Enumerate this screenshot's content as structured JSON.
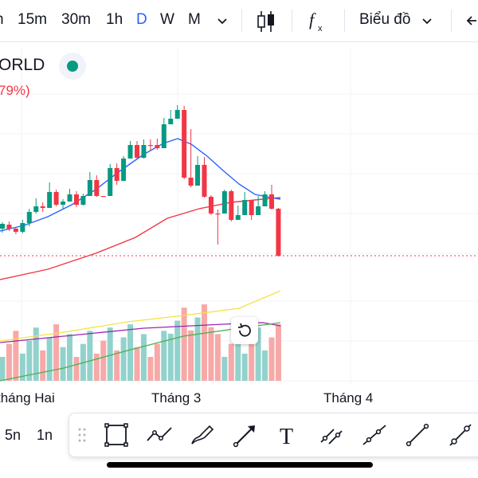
{
  "toolbar": {
    "intervals": [
      "h",
      "15m",
      "30m",
      "1h",
      "D",
      "W",
      "M"
    ],
    "active_interval": "D",
    "chart_type_label": "Biểu đồ"
  },
  "legend": {
    "symbol": "ORLD",
    "change": "79%)"
  },
  "chart_data": {
    "type": "candlestick",
    "x_labels": [
      "tháng Hai",
      "Tháng 3",
      "Tháng 4"
    ],
    "price_line_color": "#f23645",
    "up_color": "#089981",
    "down_color": "#f23645",
    "volume_up_color": "#92d2cc",
    "volume_down_color": "#f7a9a7",
    "indicators": [
      {
        "name": "",
        "color": "#2962ff"
      },
      {
        "name": "",
        "color": "#f23645"
      },
      {
        "name": "",
        "color": "#f5e342"
      },
      {
        "name": "",
        "color": "#9c27b0"
      },
      {
        "name": "",
        "color": "#4caf50"
      }
    ],
    "candles": [
      [
        287,
        281,
        292,
        279
      ],
      [
        282,
        287,
        290,
        278
      ],
      [
        287,
        291,
        294,
        285
      ],
      [
        291,
        280,
        293,
        276
      ],
      [
        280,
        266,
        284,
        262
      ],
      [
        266,
        259,
        268,
        249
      ],
      [
        259,
        261,
        266,
        254
      ],
      [
        261,
        241,
        243,
        229
      ],
      [
        241,
        257,
        259,
        238
      ],
      [
        257,
        253,
        262,
        250
      ],
      [
        253,
        244,
        245,
        237
      ],
      [
        244,
        257,
        260,
        240
      ],
      [
        257,
        246,
        258,
        243
      ],
      [
        246,
        226,
        230,
        216
      ],
      [
        226,
        246,
        247,
        220
      ],
      [
        246,
        246,
        246,
        246
      ],
      [
        246,
        211,
        212,
        206
      ],
      [
        211,
        227,
        232,
        205
      ],
      [
        227,
        199,
        201,
        196
      ],
      [
        199,
        182,
        185,
        177
      ],
      [
        182,
        198,
        199,
        177
      ],
      [
        198,
        182,
        199,
        175
      ],
      [
        182,
        182,
        189,
        175
      ],
      [
        182,
        186,
        188,
        174
      ],
      [
        186,
        156,
        161,
        148
      ],
      [
        156,
        149,
        150,
        138
      ],
      [
        149,
        138,
        140,
        132
      ],
      [
        138,
        223,
        225,
        133
      ],
      [
        223,
        233,
        235,
        162
      ],
      [
        233,
        207,
        208,
        196
      ],
      [
        207,
        247,
        248,
        197
      ],
      [
        247,
        268,
        270,
        245
      ],
      [
        268,
        268,
        307,
        263
      ],
      [
        268,
        240,
        267,
        238
      ],
      [
        240,
        276,
        278,
        238
      ],
      [
        276,
        270,
        272,
        258
      ],
      [
        270,
        251,
        253,
        241
      ],
      [
        251,
        270,
        276,
        260
      ],
      [
        270,
        259,
        261,
        246
      ],
      [
        259,
        244,
        250,
        240
      ],
      [
        244,
        262,
        263,
        232
      ],
      [
        262,
        321,
        322,
        261
      ]
    ],
    "volumes": [
      [
        0,
        1
      ],
      [
        0,
        0
      ],
      [
        1,
        0
      ],
      [
        0,
        1
      ],
      [
        0,
        0
      ],
      [
        1,
        1
      ],
      [
        1,
        0
      ],
      [
        0,
        1
      ],
      [
        1,
        0
      ],
      [
        0,
        1
      ],
      [
        0,
        0
      ],
      [
        1,
        0
      ],
      [
        0,
        1
      ],
      [
        0,
        1
      ],
      [
        1,
        0
      ],
      [
        0,
        0
      ],
      [
        1,
        0
      ],
      [
        1,
        1
      ],
      [
        0,
        1
      ],
      [
        1,
        0
      ],
      [
        0,
        0
      ],
      [
        1,
        0
      ],
      [
        1,
        0
      ],
      [
        1,
        1
      ],
      [
        0,
        0
      ],
      [
        0,
        1
      ],
      [
        1,
        0
      ],
      [
        0,
        0
      ],
      [
        1,
        0
      ],
      [
        1,
        1
      ],
      [
        0,
        0
      ],
      [
        0,
        1
      ],
      [
        1,
        0
      ],
      [
        0,
        1
      ],
      [
        0,
        0
      ],
      [
        1,
        0
      ],
      [
        0,
        0
      ],
      [
        1,
        1
      ],
      [
        0,
        1
      ],
      [
        1,
        0
      ],
      [
        0,
        0
      ],
      [
        1,
        0
      ]
    ]
  },
  "bottom": {
    "range_5n": "5n",
    "range_1n": "1n"
  }
}
